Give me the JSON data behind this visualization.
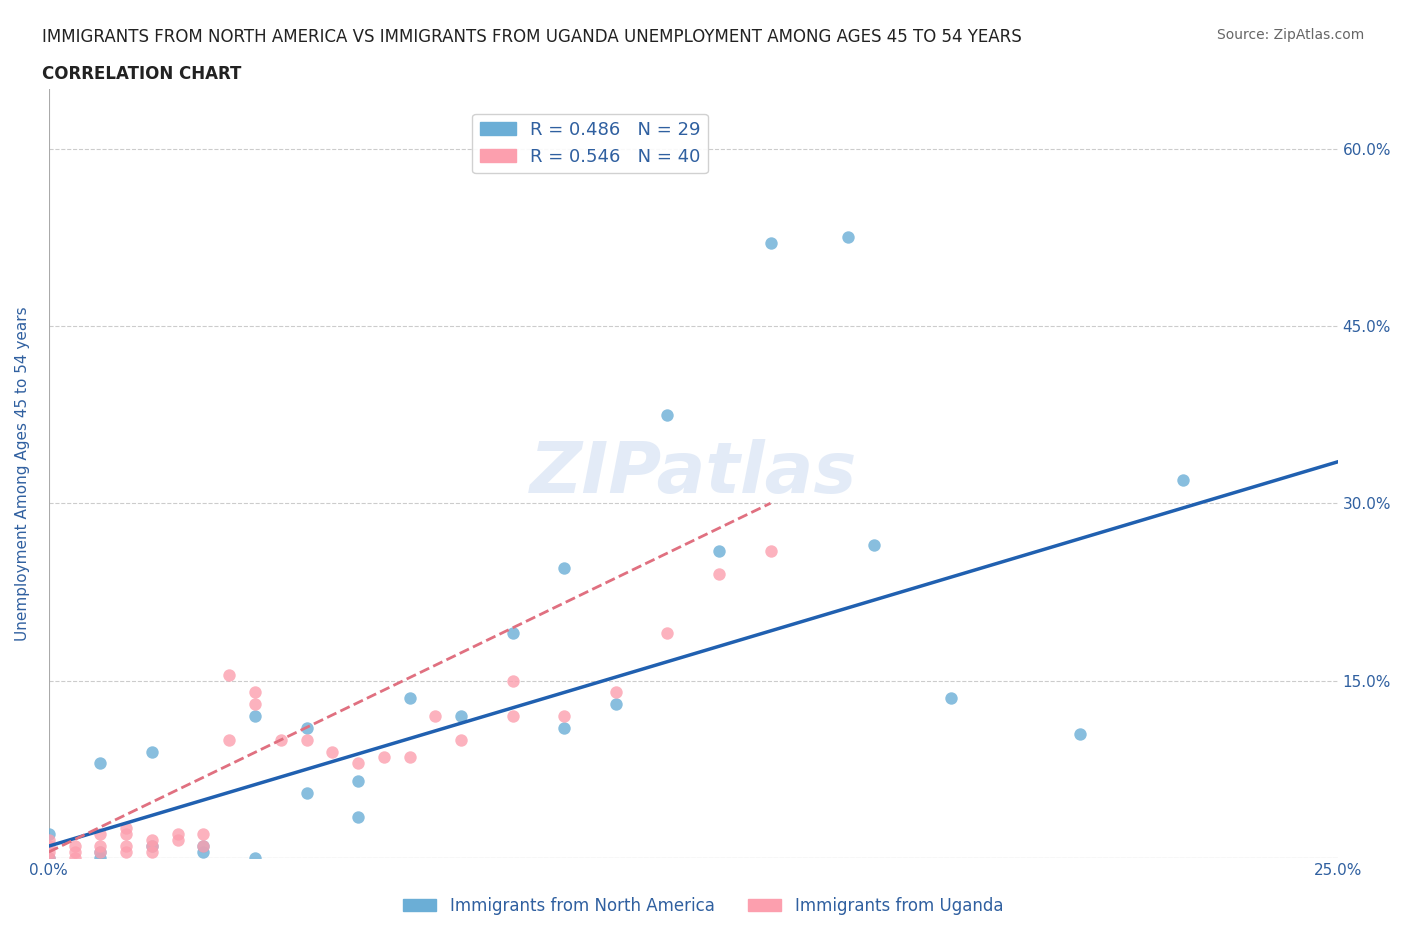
{
  "title_line1": "IMMIGRANTS FROM NORTH AMERICA VS IMMIGRANTS FROM UGANDA UNEMPLOYMENT AMONG AGES 45 TO 54 YEARS",
  "title_line2": "CORRELATION CHART",
  "source_text": "Source: ZipAtlas.com",
  "xlabel": "",
  "ylabel": "Unemployment Among Ages 45 to 54 years",
  "xlim": [
    0.0,
    0.25
  ],
  "ylim": [
    0.0,
    0.65
  ],
  "xticks": [
    0.0,
    0.05,
    0.1,
    0.15,
    0.2,
    0.25
  ],
  "xtick_labels": [
    "0.0%",
    "",
    "",
    "",
    "",
    "25.0%"
  ],
  "ytick_positions": [
    0.0,
    0.15,
    0.3,
    0.45,
    0.6
  ],
  "ytick_labels": [
    "",
    "15.0%",
    "30.0%",
    "45.0%",
    "60.0%"
  ],
  "blue_R": 0.486,
  "blue_N": 29,
  "pink_R": 0.546,
  "pink_N": 40,
  "blue_color": "#6baed6",
  "pink_color": "#fc9fae",
  "legend_text_color": "#3060a0",
  "grid_color": "#cccccc",
  "watermark_text": "ZIPatlas",
  "blue_scatter_x": [
    0.0,
    0.0,
    0.01,
    0.01,
    0.01,
    0.02,
    0.02,
    0.03,
    0.03,
    0.04,
    0.04,
    0.05,
    0.05,
    0.06,
    0.06,
    0.07,
    0.08,
    0.09,
    0.1,
    0.1,
    0.11,
    0.12,
    0.13,
    0.14,
    0.155,
    0.16,
    0.175,
    0.2,
    0.22
  ],
  "blue_scatter_y": [
    0.0,
    0.02,
    0.0,
    0.005,
    0.08,
    0.01,
    0.09,
    0.005,
    0.01,
    0.0,
    0.12,
    0.055,
    0.11,
    0.035,
    0.065,
    0.135,
    0.12,
    0.19,
    0.11,
    0.245,
    0.13,
    0.375,
    0.26,
    0.52,
    0.525,
    0.265,
    0.135,
    0.105,
    0.32
  ],
  "pink_scatter_x": [
    0.0,
    0.0,
    0.0,
    0.0,
    0.005,
    0.005,
    0.005,
    0.01,
    0.01,
    0.01,
    0.015,
    0.015,
    0.015,
    0.015,
    0.02,
    0.02,
    0.02,
    0.025,
    0.025,
    0.03,
    0.03,
    0.035,
    0.035,
    0.04,
    0.04,
    0.045,
    0.05,
    0.055,
    0.06,
    0.065,
    0.07,
    0.075,
    0.08,
    0.09,
    0.09,
    0.1,
    0.11,
    0.12,
    0.13,
    0.14
  ],
  "pink_scatter_y": [
    0.0,
    0.005,
    0.01,
    0.015,
    0.0,
    0.005,
    0.01,
    0.005,
    0.01,
    0.02,
    0.005,
    0.01,
    0.02,
    0.025,
    0.005,
    0.01,
    0.015,
    0.015,
    0.02,
    0.01,
    0.02,
    0.1,
    0.155,
    0.13,
    0.14,
    0.1,
    0.1,
    0.09,
    0.08,
    0.085,
    0.085,
    0.12,
    0.1,
    0.12,
    0.15,
    0.12,
    0.14,
    0.19,
    0.24,
    0.26
  ],
  "blue_trend_x": [
    0.0,
    0.25
  ],
  "blue_trend_y": [
    0.01,
    0.335
  ],
  "pink_trend_x": [
    0.0,
    0.14
  ],
  "pink_trend_y": [
    0.005,
    0.3
  ],
  "axis_label_color": "#3060a0",
  "tick_label_color": "#3060a0",
  "background_color": "#ffffff",
  "legend_bottom_labels": [
    "Immigrants from North America",
    "Immigrants from Uganda"
  ]
}
